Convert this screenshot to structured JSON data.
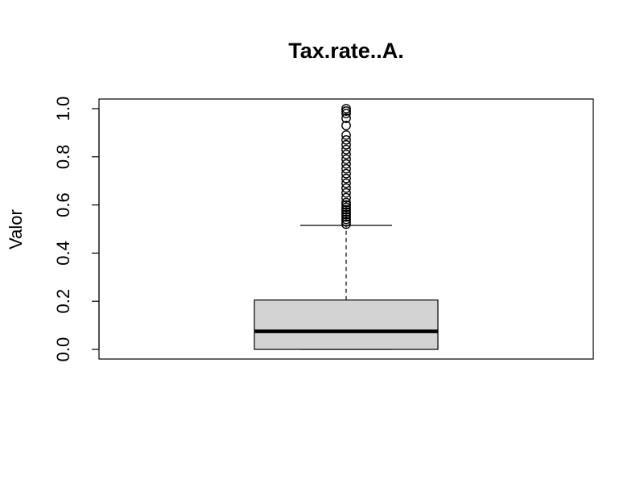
{
  "chart_data": {
    "type": "boxplot",
    "title": "Tax.rate..A.",
    "xlabel": "",
    "ylabel": "Valor",
    "ylim": [
      -0.04,
      1.04
    ],
    "y_ticks": [
      0.0,
      0.2,
      0.4,
      0.6,
      0.8,
      1.0
    ],
    "y_tick_labels": [
      "0.0",
      "0.2",
      "0.4",
      "0.6",
      "0.8",
      "1.0"
    ],
    "box": {
      "min": 0.0,
      "q1": 0.0,
      "median": 0.075,
      "q3": 0.205,
      "whisker_low": 0.0,
      "whisker_high": 0.515
    },
    "outliers": [
      0.52,
      0.53,
      0.54,
      0.55,
      0.56,
      0.57,
      0.58,
      0.59,
      0.6,
      0.61,
      0.63,
      0.65,
      0.67,
      0.69,
      0.71,
      0.73,
      0.75,
      0.77,
      0.79,
      0.81,
      0.83,
      0.85,
      0.87,
      0.89,
      0.93,
      0.96,
      0.98,
      0.99,
      1.0
    ],
    "grid": false,
    "colors": {
      "box_fill": "#d3d3d3",
      "stroke": "#000000",
      "background": "#ffffff"
    }
  }
}
